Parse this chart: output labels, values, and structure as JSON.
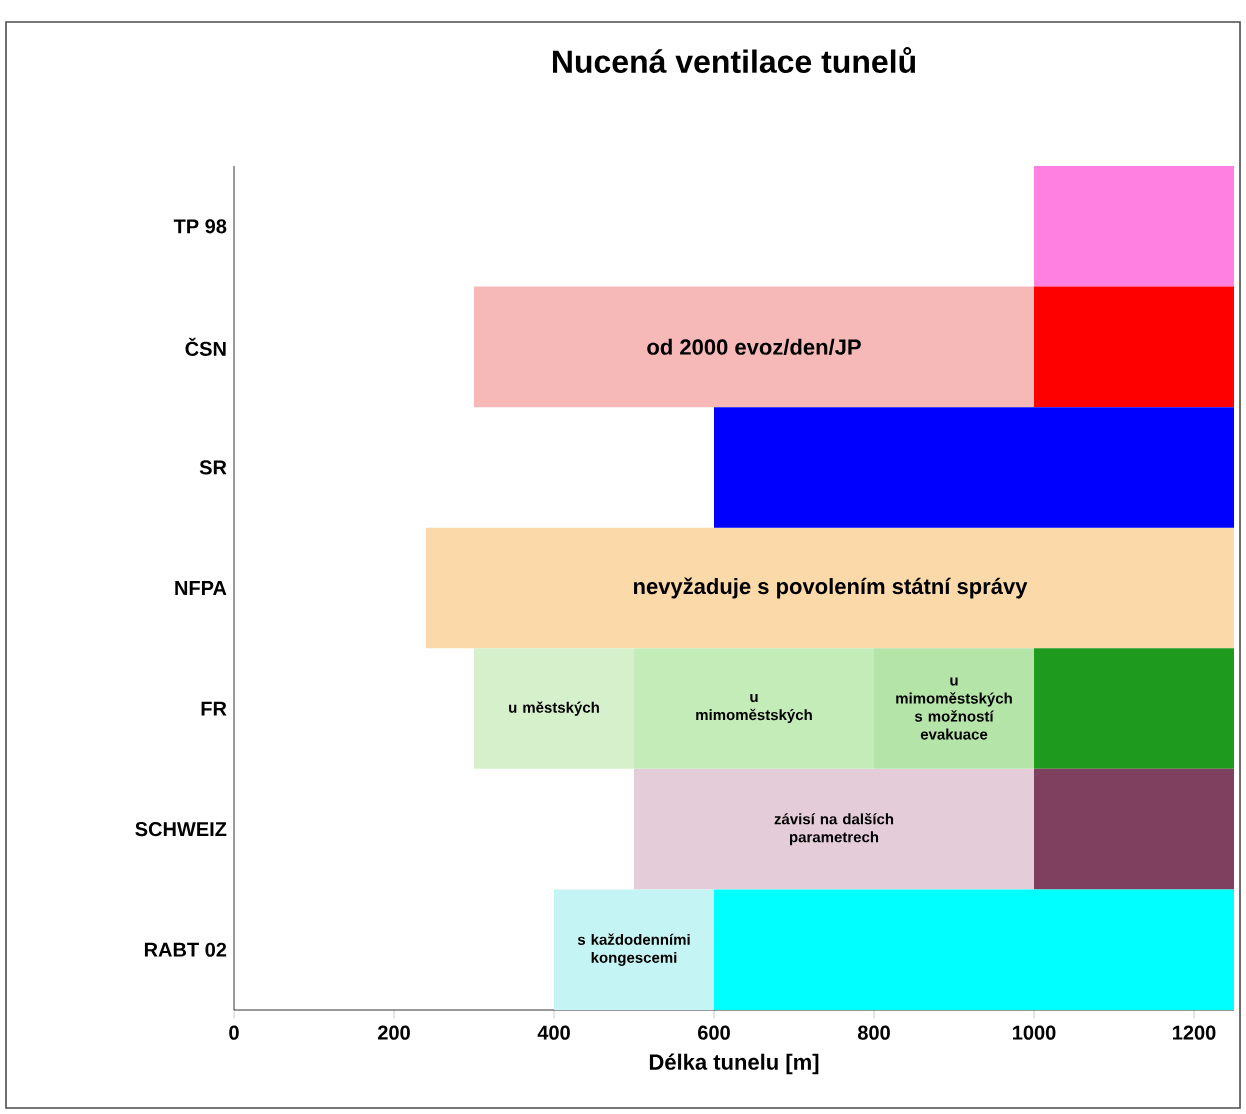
{
  "chart_data": {
    "type": "bar",
    "orientation": "horizontal",
    "title": "Nucená ventilace tunelů",
    "xlabel": "Délka tunelu [m]",
    "categories": [
      "TP 98",
      "ČSN",
      "SR",
      "NFPA",
      "FR",
      "SCHWEIZ",
      "RABT 02"
    ],
    "series": [
      {
        "base": [
          null,
          300,
          null,
          240,
          300,
          500,
          400
        ],
        "values": [
          null,
          700,
          null,
          1010,
          200,
          500,
          200
        ],
        "colors": [
          "#ffffff",
          "#f7b8b8",
          "#ffffff",
          "#fbd9a8",
          "#d6f0cc",
          "#e4ccd8",
          "#c4f4f4"
        ]
      },
      {
        "base": [
          null,
          null,
          null,
          null,
          500,
          null,
          null
        ],
        "values": [
          null,
          null,
          null,
          null,
          300,
          null,
          null
        ],
        "colors": [
          "#ffffff",
          "#ffffff",
          "#ffffff",
          "#ffffff",
          "#c4ecb8",
          "#ffffff",
          "#ffffff"
        ]
      },
      {
        "base": [
          null,
          null,
          null,
          null,
          800,
          null,
          null
        ],
        "values": [
          null,
          null,
          null,
          null,
          200,
          null,
          null
        ],
        "colors": [
          "#ffffff",
          "#ffffff",
          "#ffffff",
          "#ffffff",
          "#b4e4a8",
          "#ffffff",
          "#ffffff"
        ]
      },
      {
        "base": [
          1000,
          1000,
          600,
          null,
          1000,
          1000,
          600
        ],
        "values": [
          250,
          250,
          650,
          null,
          250,
          250,
          650
        ],
        "colors": [
          "#ff80e0",
          "#ff0000",
          "#0000ff",
          "#ffffff",
          "#1e9a1e",
          "#7f3f5f",
          "#00ffff"
        ]
      }
    ],
    "xlim": [
      0,
      1250
    ],
    "xticks": [
      0,
      200,
      400,
      600,
      800,
      1000,
      1200
    ],
    "annotations": [
      {
        "text": "od 2000 evoz/den/JP",
        "x": 650,
        "y": "ČSN"
      },
      {
        "text": "nevyžaduje s povolením státní správy",
        "x": 745,
        "y": "NFPA"
      },
      {
        "text": "u městských",
        "x": 400,
        "y": "FR"
      },
      {
        "text": "u mimoměstských",
        "x": 650,
        "y": "FR"
      },
      {
        "text": "u mimoměstských s možností evakuace",
        "x": 900,
        "y": "FR"
      },
      {
        "text": "závisí na dalších parametrech",
        "x": 750,
        "y": "SCHWEIZ"
      },
      {
        "text": "s každodenními kongescemi",
        "x": 500,
        "y": "RABT 02"
      }
    ]
  }
}
